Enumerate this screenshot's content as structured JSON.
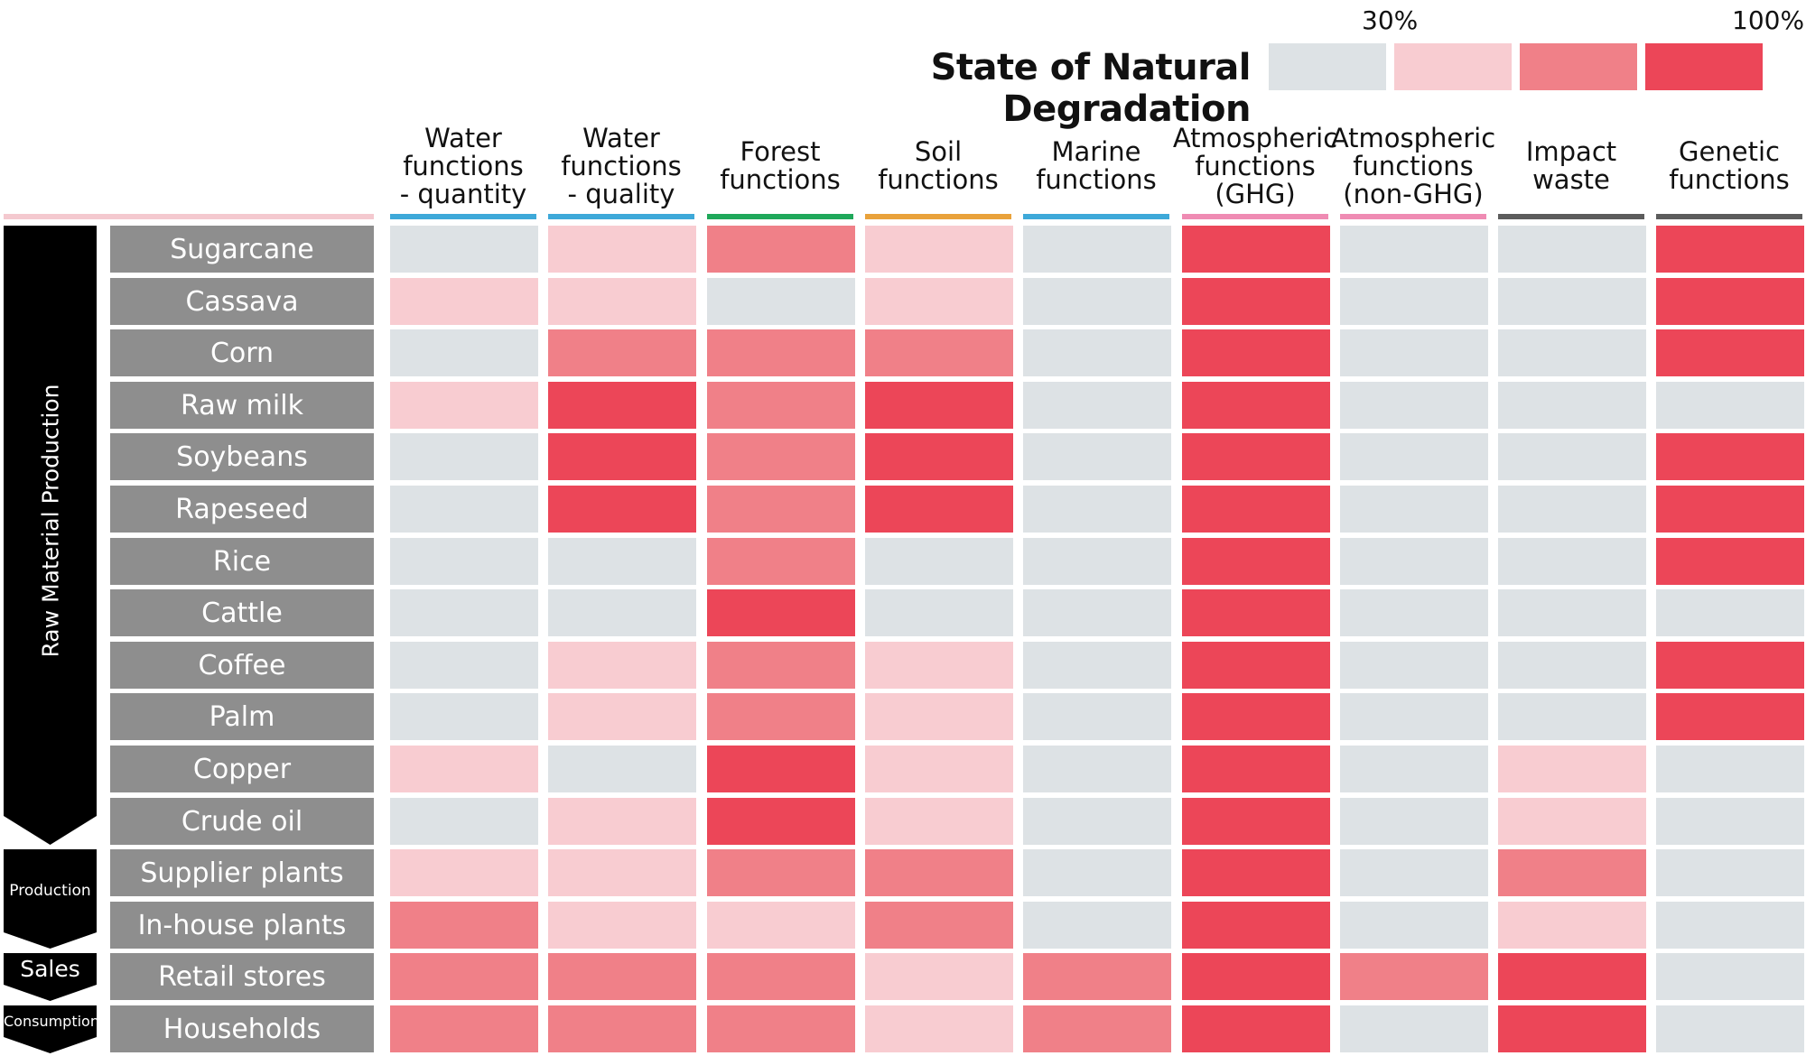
{
  "chart_data": {
    "type": "heatmap",
    "title": "State of Natural Degradation",
    "legend": {
      "low_label": "30%",
      "high_label": "100%",
      "levels": [
        {
          "level": 1,
          "color": "#dde2e5"
        },
        {
          "level": 2,
          "color": "#f8ccd1"
        },
        {
          "level": 3,
          "color": "#f08088"
        },
        {
          "level": 4,
          "color": "#ec4658"
        }
      ]
    },
    "columns": [
      {
        "label": "Water\nfunctions\n- quantity",
        "color": "#3ea9d9"
      },
      {
        "label": "Water\nfunctions\n- quality",
        "color": "#3ea9d9"
      },
      {
        "label": "Forest\nfunctions",
        "color": "#1fa85a"
      },
      {
        "label": "Soil\nfunctions",
        "color": "#e9a23b"
      },
      {
        "label": "Marine\nfunctions",
        "color": "#3ea9d9"
      },
      {
        "label": "Atmospheric\nfunctions\n(GHG)",
        "color": "#ef8bb3"
      },
      {
        "label": "Atmospheric\nfunctions\n(non-GHG)",
        "color": "#ef8bb3"
      },
      {
        "label": "Impact\nwaste",
        "color": "#5c5c5c"
      },
      {
        "label": "Genetic\nfunctions",
        "color": "#5c5c5c"
      }
    ],
    "stages": [
      {
        "label": "Raw Material Production",
        "rows": 12
      },
      {
        "label": "Production",
        "rows": 2
      },
      {
        "label": "Sales",
        "rows": 1
      },
      {
        "label": "Consumption",
        "rows": 1
      }
    ],
    "rows": [
      {
        "label": "Sugarcane",
        "values": [
          1,
          2,
          3,
          2,
          1,
          4,
          1,
          1,
          4
        ]
      },
      {
        "label": "Cassava",
        "values": [
          2,
          2,
          1,
          2,
          1,
          4,
          1,
          1,
          4
        ]
      },
      {
        "label": "Corn",
        "values": [
          1,
          3,
          3,
          3,
          1,
          4,
          1,
          1,
          4
        ]
      },
      {
        "label": "Raw milk",
        "values": [
          2,
          4,
          3,
          4,
          1,
          4,
          1,
          1,
          1
        ]
      },
      {
        "label": "Soybeans",
        "values": [
          1,
          4,
          3,
          4,
          1,
          4,
          1,
          1,
          4
        ]
      },
      {
        "label": "Rapeseed",
        "values": [
          1,
          4,
          3,
          4,
          1,
          4,
          1,
          1,
          4
        ]
      },
      {
        "label": "Rice",
        "values": [
          1,
          1,
          3,
          1,
          1,
          4,
          1,
          1,
          4
        ]
      },
      {
        "label": "Cattle",
        "values": [
          1,
          1,
          4,
          1,
          1,
          4,
          1,
          1,
          1
        ]
      },
      {
        "label": "Coffee",
        "values": [
          1,
          2,
          3,
          2,
          1,
          4,
          1,
          1,
          4
        ]
      },
      {
        "label": "Palm",
        "values": [
          1,
          2,
          3,
          2,
          1,
          4,
          1,
          1,
          4
        ]
      },
      {
        "label": "Copper",
        "values": [
          2,
          1,
          4,
          2,
          1,
          4,
          1,
          2,
          1
        ]
      },
      {
        "label": "Crude oil",
        "values": [
          1,
          2,
          4,
          2,
          1,
          4,
          1,
          2,
          1
        ]
      },
      {
        "label": "Supplier plants",
        "values": [
          2,
          2,
          3,
          3,
          1,
          4,
          1,
          3,
          1
        ]
      },
      {
        "label": "In-house plants",
        "values": [
          3,
          2,
          2,
          3,
          1,
          4,
          1,
          2,
          1
        ]
      },
      {
        "label": "Retail stores",
        "values": [
          3,
          3,
          3,
          2,
          3,
          4,
          3,
          4,
          1
        ]
      },
      {
        "label": "Households",
        "values": [
          3,
          3,
          3,
          2,
          3,
          4,
          1,
          4,
          1
        ]
      }
    ]
  }
}
